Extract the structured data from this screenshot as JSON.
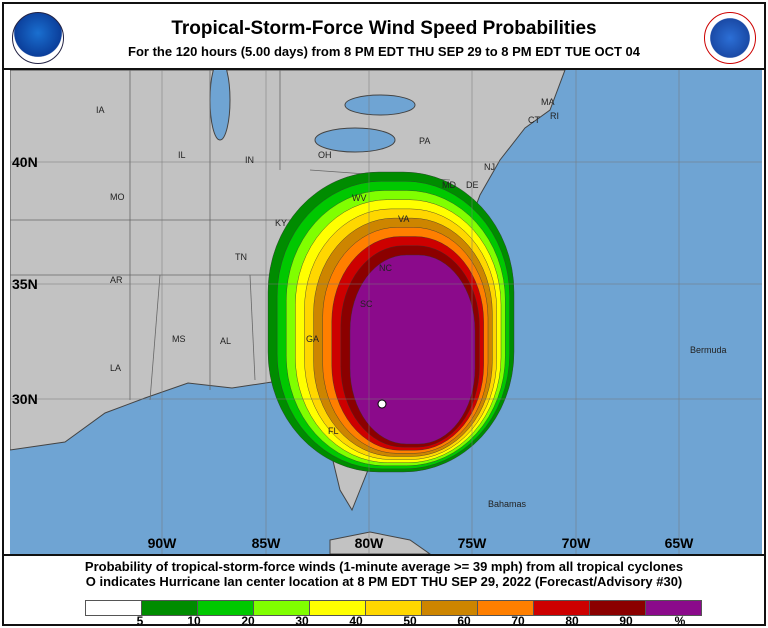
{
  "header": {
    "title": "Tropical-Storm-Force Wind Speed Probabilities",
    "subtitle": "For the 120 hours (5.00 days) from 8 PM EDT THU SEP 29 to 8 PM EDT TUE OCT 04",
    "left_logo": "NOAA",
    "right_logo": "NATIONAL WEATHER SERVICE"
  },
  "map": {
    "colors": {
      "ocean": "#6fa4d3",
      "land": "#c2c2c2",
      "border": "#555555"
    },
    "lat_labels": [
      "40N",
      "35N",
      "30N"
    ],
    "lon_labels": [
      "90W",
      "85W",
      "80W",
      "75W",
      "70W",
      "65W"
    ],
    "place_labels": [
      "IA",
      "IL",
      "IN",
      "OH",
      "PA",
      "MA",
      "CT",
      "RI",
      "NJ",
      "DE",
      "MD",
      "MO",
      "KY",
      "WV",
      "VA",
      "TN",
      "NC",
      "AR",
      "SC",
      "MS",
      "AL",
      "GA",
      "LA",
      "FL",
      "Bermuda",
      "Bahamas"
    ],
    "center_marker": "Hurricane Ian center"
  },
  "footer": {
    "line1": "Probability of tropical-storm-force winds (1-minute average >= 39 mph) from all tropical cyclones",
    "line2": "O indicates Hurricane Ian center location at 8 PM EDT THU SEP 29, 2022 (Forecast/Advisory #30)",
    "legend_colors": [
      "#ffffff",
      "#008c00",
      "#00c800",
      "#80ff00",
      "#ffff00",
      "#ffd700",
      "#cd8500",
      "#ff7f00",
      "#cd0000",
      "#8b0000",
      "#8b0a8b"
    ],
    "legend_ticks": [
      "5",
      "10",
      "20",
      "30",
      "40",
      "50",
      "60",
      "70",
      "80",
      "90",
      "%"
    ]
  }
}
